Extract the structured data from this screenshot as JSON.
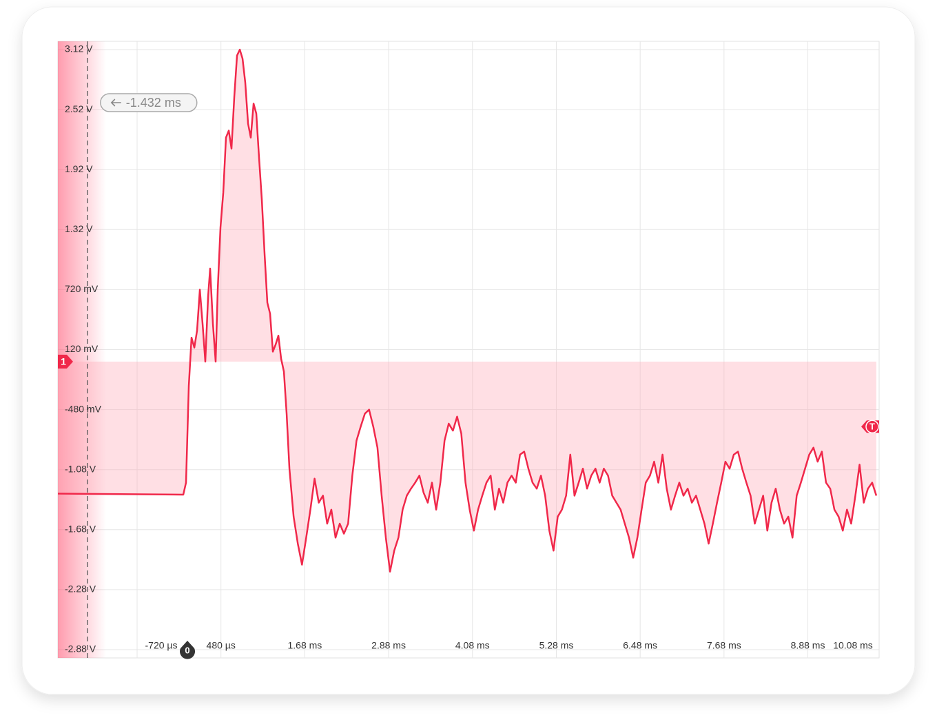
{
  "chart_data": {
    "type": "line",
    "color": "#f0284a",
    "fill": "rgba(255,170,185,0.38)",
    "xlim": [
      -1.854,
      9.9
    ],
    "ylim": [
      -2.88,
      3.12
    ],
    "grid": true,
    "yticks": [
      {
        "value": 3.12,
        "label": "3.12 V"
      },
      {
        "value": 2.52,
        "label": "2.52 V"
      },
      {
        "value": 1.92,
        "label": "1.92 V"
      },
      {
        "value": 1.32,
        "label": "1.32 V"
      },
      {
        "value": 0.72,
        "label": "720 mV"
      },
      {
        "value": 0.12,
        "label": "120 mV"
      },
      {
        "value": -0.48,
        "label": "-480 mV"
      },
      {
        "value": -1.08,
        "label": "-1.08 V"
      },
      {
        "value": -1.68,
        "label": "-1.68 V"
      },
      {
        "value": -2.28,
        "label": "-2.28 V"
      },
      {
        "value": -2.88,
        "label": "-2.88 V"
      }
    ],
    "xticks": [
      {
        "value": -0.72,
        "label": "-720 µs"
      },
      {
        "value": 0.48,
        "label": "480 µs"
      },
      {
        "value": 1.68,
        "label": "1.68 ms"
      },
      {
        "value": 2.88,
        "label": "2.88 ms"
      },
      {
        "value": 4.08,
        "label": "4.08 ms"
      },
      {
        "value": 5.28,
        "label": "5.28 ms"
      },
      {
        "value": 6.48,
        "label": "6.48 ms"
      },
      {
        "value": 7.68,
        "label": "7.68 ms"
      },
      {
        "value": 8.88,
        "label": "8.88 ms"
      },
      {
        "value": 10.08,
        "label": "10.08 ms"
      }
    ],
    "cursor": {
      "value": -1.432,
      "label": "-1.432 ms"
    },
    "markers": {
      "channel": {
        "label": "1",
        "value": 0
      },
      "trigger": {
        "label": "T",
        "value": -0.65
      },
      "zero": {
        "label": "0",
        "value": 0
      }
    },
    "x": [
      -1.854,
      -0.059,
      -0.02,
      0.02,
      0.059,
      0.099,
      0.138,
      0.178,
      0.217,
      0.256,
      0.296,
      0.325,
      0.365,
      0.404,
      0.434,
      0.473,
      0.513,
      0.552,
      0.592,
      0.631,
      0.671,
      0.71,
      0.75,
      0.789,
      0.828,
      0.868,
      0.907,
      0.947,
      0.986,
      1.026,
      1.065,
      1.105,
      1.144,
      1.183,
      1.223,
      1.262,
      1.302,
      1.341,
      1.381,
      1.42,
      1.46,
      1.52,
      1.58,
      1.64,
      1.7,
      1.76,
      1.82,
      1.88,
      1.94,
      2.0,
      2.06,
      2.12,
      2.18,
      2.24,
      2.3,
      2.36,
      2.42,
      2.48,
      2.54,
      2.6,
      2.66,
      2.72,
      2.78,
      2.84,
      2.9,
      2.96,
      3.02,
      3.08,
      3.14,
      3.2,
      3.26,
      3.32,
      3.38,
      3.44,
      3.5,
      3.56,
      3.62,
      3.68,
      3.74,
      3.8,
      3.86,
      3.92,
      3.98,
      4.04,
      4.1,
      4.16,
      4.22,
      4.28,
      4.34,
      4.4,
      4.46,
      4.52,
      4.58,
      4.64,
      4.7,
      4.76,
      4.82,
      4.88,
      4.94,
      5.0,
      5.06,
      5.12,
      5.18,
      5.24,
      5.3,
      5.36,
      5.42,
      5.48,
      5.54,
      5.6,
      5.66,
      5.72,
      5.78,
      5.84,
      5.9,
      5.96,
      6.02,
      6.08,
      6.14,
      6.2,
      6.26,
      6.32,
      6.38,
      6.44,
      6.5,
      6.56,
      6.62,
      6.68,
      6.74,
      6.8,
      6.86,
      6.92,
      6.98,
      7.04,
      7.1,
      7.16,
      7.22,
      7.28,
      7.34,
      7.4,
      7.46,
      7.52,
      7.58,
      7.64,
      7.7,
      7.76,
      7.82,
      7.88,
      7.94,
      8.0,
      8.06,
      8.12,
      8.18,
      8.24,
      8.3,
      8.36,
      8.42,
      8.48,
      8.54,
      8.6,
      8.66,
      8.72,
      8.78,
      8.84,
      8.9,
      8.96,
      9.02,
      9.08,
      9.14,
      9.2,
      9.26,
      9.32,
      9.38,
      9.44,
      9.5,
      9.56,
      9.62,
      9.68,
      9.74,
      9.8,
      9.86
    ],
    "values": [
      -1.32,
      -1.33,
      -1.21,
      -0.24,
      0.24,
      0.14,
      0.31,
      0.72,
      0.38,
      0.0,
      0.65,
      0.93,
      0.38,
      0.0,
      0.72,
      1.34,
      1.69,
      2.24,
      2.31,
      2.13,
      2.65,
      3.06,
      3.12,
      3.03,
      2.79,
      2.38,
      2.24,
      2.58,
      2.48,
      2.03,
      1.62,
      1.07,
      0.59,
      0.48,
      0.1,
      0.17,
      0.26,
      0.03,
      -0.1,
      -0.52,
      -1.07,
      -1.55,
      -1.82,
      -2.03,
      -1.76,
      -1.48,
      -1.17,
      -1.41,
      -1.34,
      -1.62,
      -1.48,
      -1.76,
      -1.62,
      -1.72,
      -1.62,
      -1.14,
      -0.79,
      -0.65,
      -0.52,
      -0.48,
      -0.65,
      -0.86,
      -1.34,
      -1.76,
      -2.1,
      -1.89,
      -1.76,
      -1.48,
      -1.34,
      -1.27,
      -1.21,
      -1.14,
      -1.31,
      -1.41,
      -1.21,
      -1.48,
      -1.21,
      -0.79,
      -0.62,
      -0.69,
      -0.55,
      -0.72,
      -1.21,
      -1.48,
      -1.69,
      -1.48,
      -1.34,
      -1.21,
      -1.14,
      -1.48,
      -1.27,
      -1.41,
      -1.21,
      -1.14,
      -1.21,
      -0.93,
      -0.9,
      -1.07,
      -1.21,
      -1.27,
      -1.14,
      -1.34,
      -1.69,
      -1.89,
      -1.55,
      -1.48,
      -1.34,
      -0.93,
      -1.34,
      -1.21,
      -1.07,
      -1.27,
      -1.14,
      -1.07,
      -1.21,
      -1.07,
      -1.14,
      -1.34,
      -1.41,
      -1.48,
      -1.62,
      -1.76,
      -1.96,
      -1.76,
      -1.48,
      -1.21,
      -1.14,
      -1.0,
      -1.21,
      -0.93,
      -1.27,
      -1.48,
      -1.34,
      -1.21,
      -1.34,
      -1.27,
      -1.41,
      -1.34,
      -1.48,
      -1.62,
      -1.82,
      -1.62,
      -1.41,
      -1.21,
      -1.0,
      -1.07,
      -0.93,
      -0.9,
      -1.07,
      -1.21,
      -1.34,
      -1.62,
      -1.48,
      -1.34,
      -1.69,
      -1.41,
      -1.27,
      -1.48,
      -1.62,
      -1.55,
      -1.76,
      -1.34,
      -1.21,
      -1.07,
      -0.93,
      -0.86,
      -1.0,
      -0.9,
      -1.21,
      -1.27,
      -1.48,
      -1.55,
      -1.69,
      -1.48,
      -1.62,
      -1.34,
      -1.03,
      -1.41,
      -1.27,
      -1.21,
      -1.34
    ]
  }
}
